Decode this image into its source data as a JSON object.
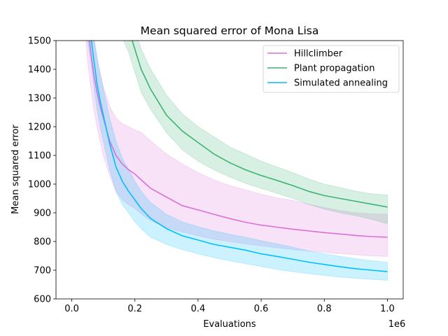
{
  "chart_data": {
    "type": "line",
    "title": "Mean squared error of Mona Lisa",
    "xlabel": "Evaluations",
    "ylabel": "Mean squared error",
    "x_offset_label": "1e6",
    "xlim": [
      -0.05,
      1.05
    ],
    "ylim": [
      600,
      1500
    ],
    "x_ticks": [
      0.0,
      0.2,
      0.4,
      0.6,
      0.8,
      1.0
    ],
    "x_tick_labels": [
      "0.0",
      "0.2",
      "0.4",
      "0.6",
      "0.8",
      "1.0"
    ],
    "y_ticks": [
      600,
      700,
      800,
      900,
      1000,
      1100,
      1200,
      1300,
      1400,
      1500
    ],
    "y_tick_labels": [
      "600",
      "700",
      "800",
      "900",
      "1000",
      "1100",
      "1200",
      "1300",
      "1400",
      "1500"
    ],
    "grid": false,
    "legend_position": "top-right",
    "x": [
      0.04,
      0.05,
      0.06,
      0.07,
      0.08,
      0.09,
      0.1,
      0.12,
      0.14,
      0.16,
      0.18,
      0.2,
      0.22,
      0.25,
      0.3,
      0.35,
      0.4,
      0.45,
      0.5,
      0.55,
      0.6,
      0.65,
      0.7,
      0.75,
      0.8,
      0.85,
      0.9,
      0.95,
      1.0
    ],
    "series": [
      {
        "name": "Hillclimber",
        "color": "#da70d6",
        "mean": [
          1700,
          1560,
          1460,
          1380,
          1320,
          1270,
          1230,
          1150,
          1100,
          1070,
          1050,
          1035,
          1015,
          985,
          955,
          925,
          910,
          895,
          880,
          867,
          857,
          850,
          843,
          837,
          831,
          826,
          821,
          817,
          815
        ],
        "lower": [
          1560,
          1430,
          1340,
          1260,
          1200,
          1150,
          1100,
          1030,
          975,
          945,
          928,
          915,
          897,
          873,
          848,
          833,
          820,
          808,
          800,
          792,
          785,
          778,
          772,
          767,
          762,
          758,
          754,
          750,
          748
        ],
        "upper": [
          1850,
          1700,
          1590,
          1500,
          1440,
          1390,
          1340,
          1270,
          1230,
          1210,
          1200,
          1188,
          1180,
          1150,
          1105,
          1070,
          1040,
          1015,
          995,
          980,
          965,
          952,
          943,
          930,
          918,
          908,
          900,
          896,
          895
        ]
      },
      {
        "name": "Plant propagation",
        "color": "#3cb371",
        "mean": [
          2600,
          2500,
          2400,
          2300,
          2200,
          2100,
          2000,
          1850,
          1720,
          1600,
          1540,
          1470,
          1400,
          1330,
          1240,
          1185,
          1145,
          1105,
          1075,
          1050,
          1030,
          1013,
          995,
          975,
          960,
          950,
          940,
          930,
          920
        ],
        "lower": [
          2500,
          2400,
          2300,
          2200,
          2100,
          2000,
          1900,
          1760,
          1630,
          1510,
          1460,
          1390,
          1320,
          1260,
          1180,
          1120,
          1080,
          1050,
          1025,
          1003,
          985,
          968,
          950,
          930,
          913,
          900,
          890,
          877,
          862
        ],
        "upper": [
          2700,
          2600,
          2500,
          2400,
          2300,
          2200,
          2100,
          1950,
          1800,
          1680,
          1610,
          1540,
          1470,
          1400,
          1310,
          1245,
          1200,
          1165,
          1130,
          1105,
          1080,
          1060,
          1040,
          1018,
          1000,
          988,
          975,
          966,
          962
        ]
      },
      {
        "name": "Simulated annealing",
        "color": "#00bfff",
        "mean": [
          1700,
          1580,
          1520,
          1430,
          1350,
          1290,
          1240,
          1140,
          1060,
          1010,
          975,
          945,
          915,
          880,
          845,
          820,
          805,
          790,
          780,
          770,
          757,
          748,
          738,
          728,
          720,
          712,
          705,
          700,
          695
        ],
        "lower": [
          1620,
          1500,
          1430,
          1340,
          1260,
          1200,
          1150,
          1050,
          975,
          928,
          900,
          868,
          845,
          815,
          790,
          772,
          757,
          744,
          733,
          723,
          713,
          703,
          695,
          688,
          682,
          676,
          672,
          668,
          665
        ],
        "upper": [
          1780,
          1660,
          1600,
          1520,
          1440,
          1380,
          1330,
          1230,
          1150,
          1090,
          1050,
          1010,
          975,
          935,
          895,
          868,
          852,
          837,
          825,
          815,
          803,
          792,
          780,
          767,
          757,
          748,
          740,
          733,
          727
        ]
      }
    ]
  }
}
